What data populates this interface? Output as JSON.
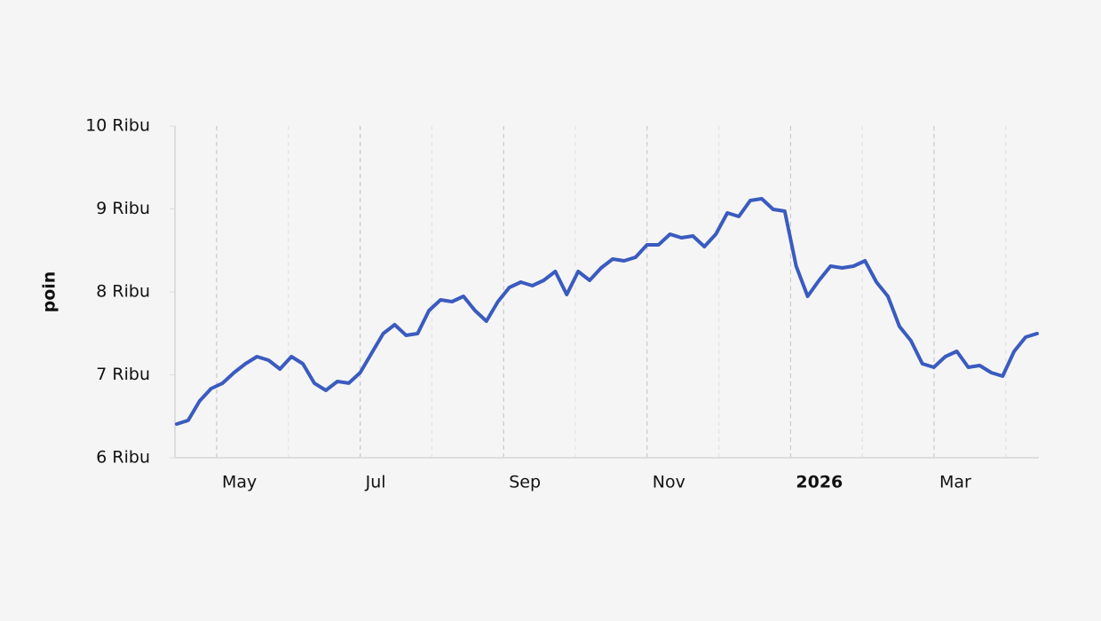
{
  "chart_data": {
    "type": "line",
    "y_label": "poin",
    "ylim": [
      6000,
      10000
    ],
    "yticks": [
      {
        "value": 6000,
        "label": "6 Ribu"
      },
      {
        "value": 7000,
        "label": "7 Ribu"
      },
      {
        "value": 8000,
        "label": "8 Ribu"
      },
      {
        "value": 9000,
        "label": "9 Ribu"
      },
      {
        "value": 10000,
        "label": "10 Ribu"
      }
    ],
    "xticks": [
      {
        "value": "2025-05",
        "label": "May"
      },
      {
        "value": "2025-07",
        "label": "Jul"
      },
      {
        "value": "2025-09",
        "label": "Sep"
      },
      {
        "value": "2025-11",
        "label": "Nov"
      },
      {
        "value": "2026-01",
        "label": "2026"
      },
      {
        "value": "2026-03",
        "label": "Mar"
      }
    ],
    "grid": true,
    "series": [
      {
        "color": "#3a5bbf",
        "values": [
          6406,
          6450,
          6685,
          6834,
          6900,
          7027,
          7134,
          7219,
          7176,
          7070,
          7219,
          7134,
          6900,
          6813,
          6920,
          6900,
          7027,
          7262,
          7497,
          7604,
          7476,
          7497,
          7775,
          7904,
          7882,
          7947,
          7775,
          7647,
          7882,
          8053,
          8118,
          8075,
          8139,
          8246,
          7968,
          8246,
          8139,
          8289,
          8396,
          8374,
          8417,
          8567,
          8567,
          8695,
          8652,
          8674,
          8545,
          8695,
          8952,
          8909,
          9102,
          9123,
          8995,
          8973,
          8310,
          7947,
          8139,
          8310,
          8289,
          8310,
          8374,
          8118,
          7947,
          7583,
          7412,
          7134,
          7091,
          7219,
          7283,
          7091,
          7112,
          7027,
          6984,
          7283,
          7455,
          7497
        ]
      }
    ]
  }
}
